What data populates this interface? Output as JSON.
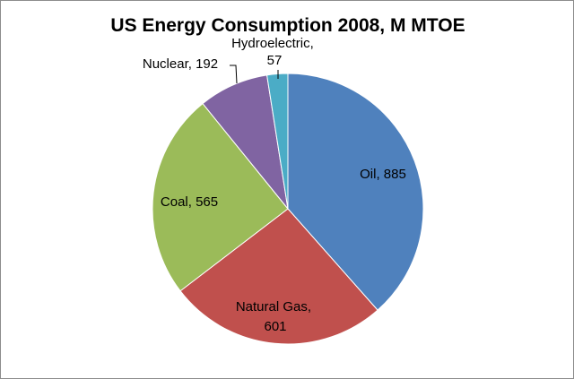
{
  "chart_data": {
    "type": "pie",
    "title": "US Energy Consumption 2008, M MTOE",
    "categories": [
      "Oil",
      "Natural Gas",
      "Coal",
      "Nuclear",
      "Hydroelectric"
    ],
    "values": [
      885,
      601,
      565,
      192,
      57
    ],
    "colors": [
      "#4F81BD",
      "#C0504D",
      "#9BBB59",
      "#8064A2",
      "#4BACC6"
    ],
    "data_labels": [
      "Oil, 885",
      "Natural Gas, 601",
      "Coal, 565",
      "Nuclear, 192",
      "Hydroelectric, 57"
    ],
    "legend": "none"
  }
}
